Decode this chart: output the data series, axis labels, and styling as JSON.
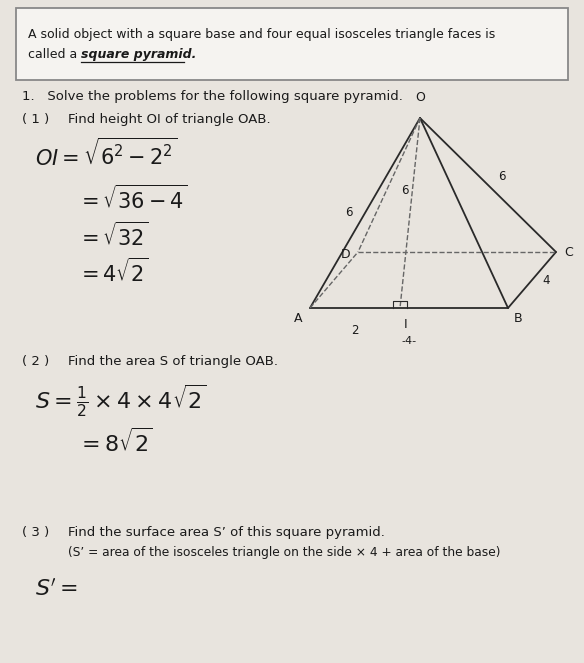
{
  "bg_color": "#e8e4de",
  "box_bg": "#f5f3f0",
  "box_text_line1": "A solid object with a square base and four equal isosceles triangle faces is",
  "box_text_line2": "called a ",
  "box_text_bold": "square pyramid.",
  "section_title": "1.   Solve the problems for the following square pyramid.",
  "part1_label": "( 1 )",
  "part1_title": "Find height OI of triangle OAB.",
  "part2_label": "( 2 )",
  "part2_title": "Find the area S of triangle OAB.",
  "part3_label": "( 3 )",
  "part3_title": "Find the surface area S’ of this square pyramid.",
  "part3_subtitle": "(S’ = area of the isosceles triangle on the side × 4 + area of the base)",
  "text_color": "#1a1a1a",
  "line_color": "#2a2a2a",
  "dash_color": "#666666"
}
